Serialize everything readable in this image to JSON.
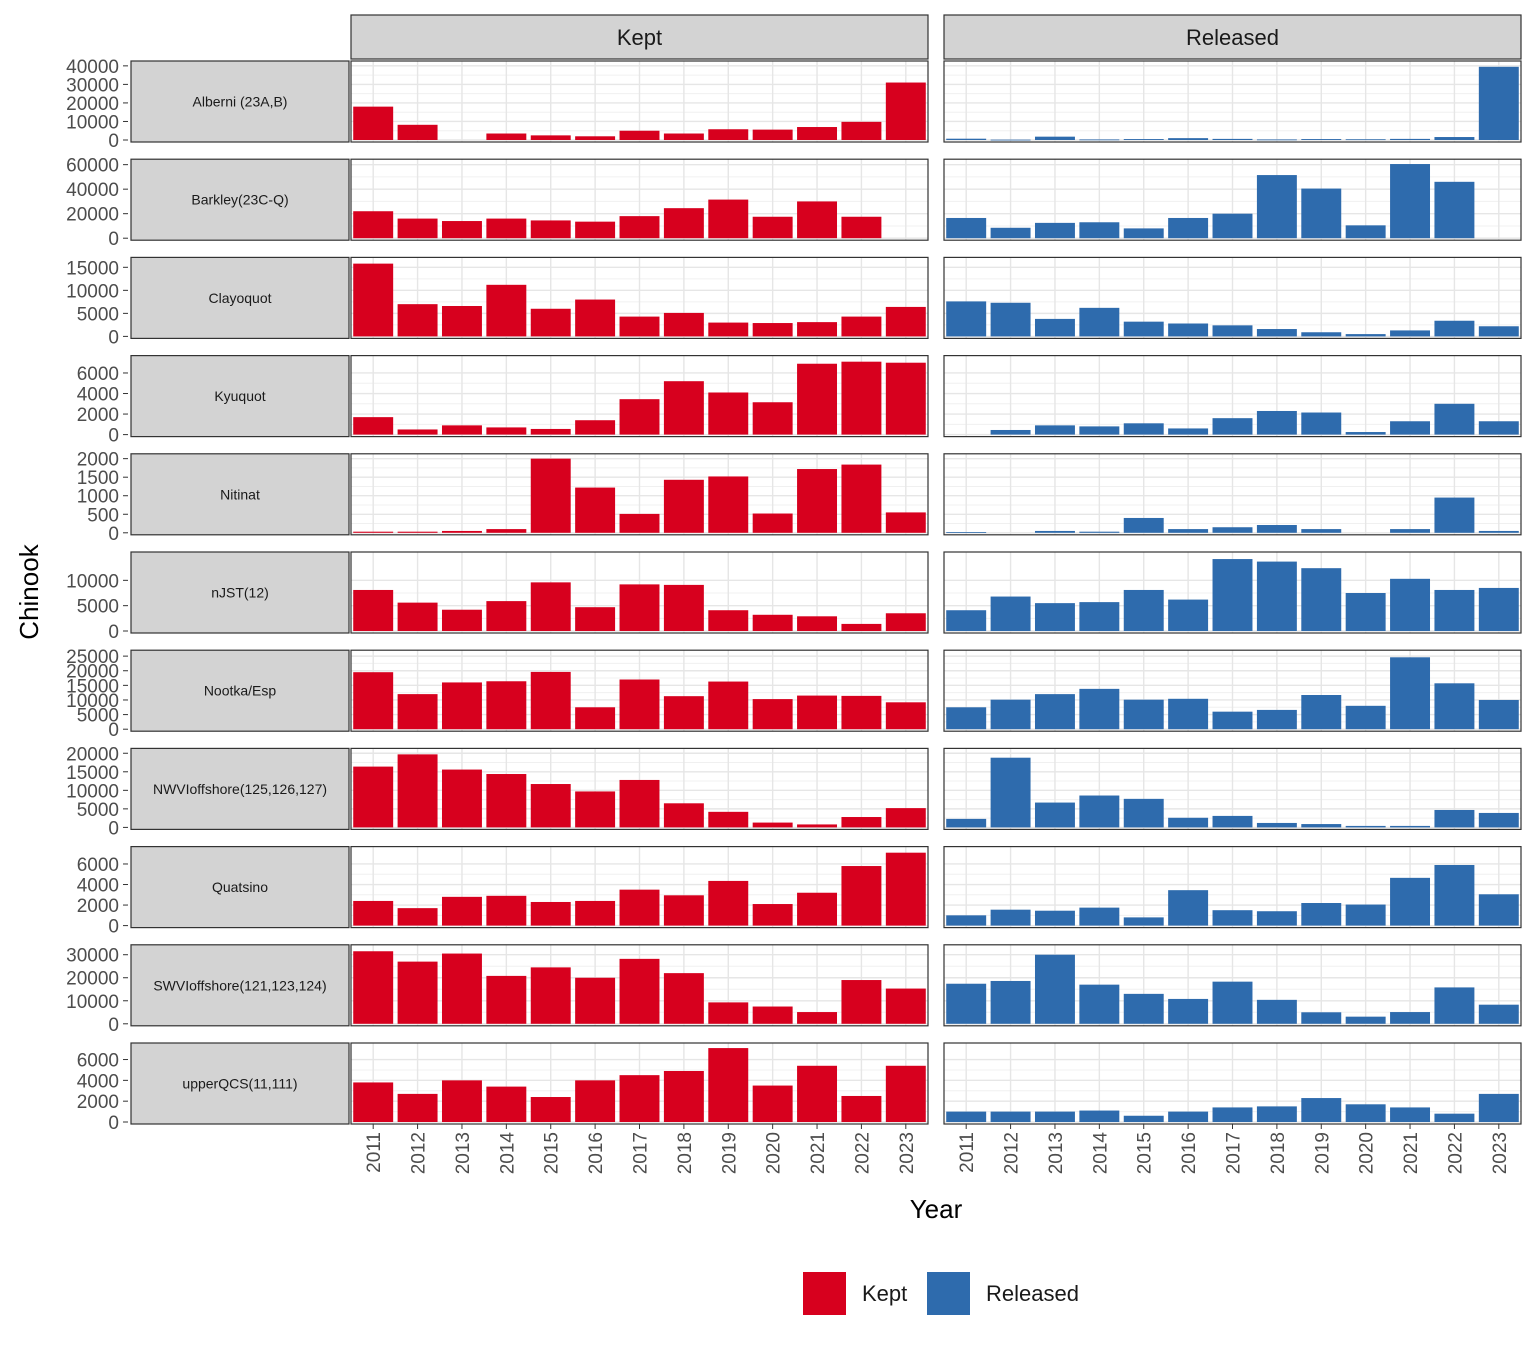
{
  "chart_data": {
    "type": "bar",
    "x_label": "Year",
    "y_label": "Chinook",
    "columns": [
      "Kept",
      "Released"
    ],
    "categories": [
      "2011",
      "2012",
      "2013",
      "2014",
      "2015",
      "2016",
      "2017",
      "2018",
      "2019",
      "2020",
      "2021",
      "2022",
      "2023"
    ],
    "colors": {
      "Kept": "#d7001e",
      "Released": "#2e6bad"
    },
    "legend": {
      "position": "bottom",
      "items": [
        "Kept",
        "Released"
      ]
    },
    "grid": true,
    "rows": [
      {
        "label": "Alberni (23A,B)",
        "ymax": 41000,
        "ticks": [
          0,
          10000,
          20000,
          30000,
          40000
        ],
        "kept": [
          18000,
          8200,
          0,
          3500,
          2500,
          2000,
          5000,
          3500,
          5800,
          5600,
          7000,
          9800,
          31000
        ],
        "released": [
          700,
          200,
          1800,
          300,
          500,
          1000,
          600,
          300,
          500,
          400,
          600,
          1600,
          39500
        ]
      },
      {
        "label": "Barkley(23C-Q)",
        "ymax": 62000,
        "ticks": [
          0,
          20000,
          40000,
          60000
        ],
        "kept": [
          22000,
          16000,
          14000,
          16000,
          14500,
          13500,
          18000,
          24500,
          31500,
          17500,
          30000,
          17500,
          0
        ],
        "released": [
          16500,
          8500,
          12500,
          13000,
          8000,
          16500,
          20000,
          51500,
          40500,
          10500,
          60500,
          46000,
          0
        ]
      },
      {
        "label": "Clayoquot",
        "ymax": 16500,
        "ticks": [
          0,
          5000,
          10000,
          15000
        ],
        "kept": [
          15800,
          7000,
          6600,
          11200,
          6000,
          8000,
          4300,
          5100,
          3000,
          2900,
          3100,
          4300,
          6400
        ],
        "released": [
          7600,
          7300,
          3800,
          6200,
          3200,
          2800,
          2400,
          1600,
          900,
          500,
          1300,
          3400,
          2200
        ]
      },
      {
        "label": "Kyuquot",
        "ymax": 7400,
        "ticks": [
          0,
          2000,
          4000,
          6000
        ],
        "kept": [
          1700,
          500,
          900,
          700,
          550,
          1400,
          3450,
          5200,
          4100,
          3150,
          6900,
          7100,
          7000
        ],
        "released": [
          0,
          450,
          900,
          800,
          1100,
          600,
          1600,
          2300,
          2150,
          250,
          1300,
          3000,
          1300
        ]
      },
      {
        "label": "Nitinat",
        "ymax": 2050,
        "ticks": [
          0,
          500,
          1000,
          1500,
          2000
        ],
        "kept": [
          30,
          30,
          50,
          100,
          2000,
          1220,
          510,
          1430,
          1520,
          520,
          1720,
          1840,
          550
        ],
        "released": [
          20,
          0,
          50,
          30,
          400,
          100,
          150,
          210,
          100,
          0,
          100,
          950,
          50
        ]
      },
      {
        "label": "nJST(12)",
        "ymax": 15000,
        "ticks": [
          0,
          5000,
          10000
        ],
        "kept": [
          8100,
          5600,
          4200,
          5900,
          9600,
          4700,
          9200,
          9100,
          4100,
          3200,
          2900,
          1400,
          3500
        ],
        "released": [
          4100,
          6800,
          5500,
          5700,
          8100,
          6200,
          14200,
          13700,
          12400,
          7500,
          10300,
          8100,
          8500
        ]
      },
      {
        "label": "Nootka/Esp",
        "ymax": 26000,
        "ticks": [
          0,
          5000,
          10000,
          15000,
          20000,
          25000
        ],
        "kept": [
          19500,
          12000,
          16000,
          16400,
          19600,
          7500,
          17000,
          11300,
          16300,
          10300,
          11500,
          11400,
          9200
        ],
        "released": [
          7500,
          10100,
          12000,
          13800,
          10100,
          10400,
          6000,
          6600,
          11700,
          8000,
          24600,
          15700,
          10000
        ]
      },
      {
        "label": "NWVIoffshore(125,126,127)",
        "ymax": 20500,
        "ticks": [
          0,
          5000,
          10000,
          15000,
          20000
        ],
        "kept": [
          16400,
          19700,
          15600,
          14400,
          11700,
          9700,
          12800,
          6500,
          4200,
          1300,
          800,
          2800,
          5200
        ],
        "released": [
          2300,
          18800,
          6700,
          8600,
          7700,
          2600,
          3100,
          1200,
          900,
          400,
          400,
          4700,
          3900
        ]
      },
      {
        "label": "Quatsino",
        "ymax": 7400,
        "ticks": [
          0,
          2000,
          4000,
          6000
        ],
        "kept": [
          2400,
          1700,
          2800,
          2900,
          2300,
          2400,
          3500,
          2950,
          4350,
          2100,
          3200,
          5800,
          7100
        ],
        "released": [
          1000,
          1550,
          1450,
          1750,
          800,
          3450,
          1500,
          1400,
          2200,
          2050,
          4650,
          5900,
          3050
        ]
      },
      {
        "label": "SWVIoffshore(121,123,124)",
        "ymax": 33000,
        "ticks": [
          0,
          10000,
          20000,
          30000
        ],
        "kept": [
          31500,
          27000,
          30500,
          20800,
          24500,
          20000,
          28200,
          22000,
          9300,
          7500,
          5100,
          19000,
          15300
        ],
        "released": [
          17400,
          18600,
          30000,
          17000,
          13000,
          10800,
          18300,
          10400,
          5000,
          3100,
          5100,
          15800,
          8300
        ]
      },
      {
        "label": "upperQCS(11,111)",
        "ymax": 7300,
        "ticks": [
          0,
          2000,
          4000,
          6000
        ],
        "kept": [
          3800,
          2700,
          4000,
          3400,
          2400,
          4000,
          4500,
          4900,
          7100,
          3500,
          5400,
          2500,
          5400
        ],
        "released": [
          1000,
          1000,
          1000,
          1100,
          600,
          1000,
          1400,
          1500,
          2300,
          1700,
          1400,
          800,
          2700
        ]
      }
    ]
  }
}
